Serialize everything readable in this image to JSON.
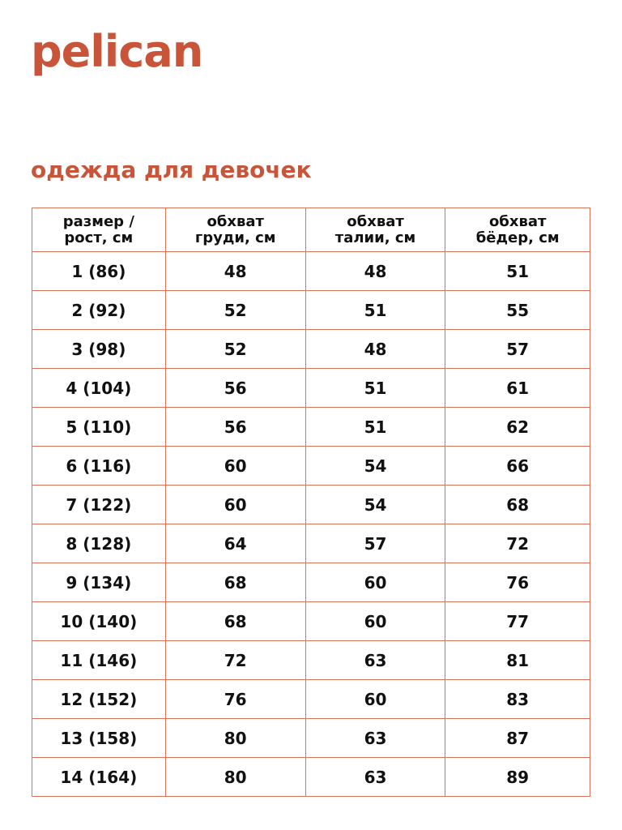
{
  "brand": {
    "logo": "pelican",
    "color": "#c8553a"
  },
  "title": "одежда для девочек",
  "table": {
    "headers": [
      [
        "размер /",
        "рост, см"
      ],
      [
        "обхват",
        "груди, см"
      ],
      [
        "обхват",
        "талии, см"
      ],
      [
        "обхват",
        "бёдер, см"
      ]
    ],
    "rows": [
      [
        "1 (86)",
        "48",
        "48",
        "51"
      ],
      [
        "2 (92)",
        "52",
        "51",
        "55"
      ],
      [
        "3 (98)",
        "52",
        "48",
        "57"
      ],
      [
        "4 (104)",
        "56",
        "51",
        "61"
      ],
      [
        "5 (110)",
        "56",
        "51",
        "62"
      ],
      [
        "6 (116)",
        "60",
        "54",
        "66"
      ],
      [
        "7 (122)",
        "60",
        "54",
        "68"
      ],
      [
        "8 (128)",
        "64",
        "57",
        "72"
      ],
      [
        "9 (134)",
        "68",
        "60",
        "76"
      ],
      [
        "10 (140)",
        "68",
        "60",
        "77"
      ],
      [
        "11 (146)",
        "72",
        "63",
        "81"
      ],
      [
        "12 (152)",
        "76",
        "60",
        "83"
      ],
      [
        "13 (158)",
        "80",
        "63",
        "87"
      ],
      [
        "14 (164)",
        "80",
        "63",
        "89"
      ]
    ]
  }
}
